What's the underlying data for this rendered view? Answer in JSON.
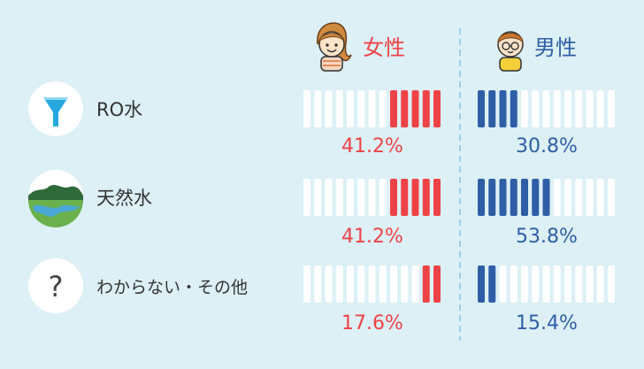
{
  "chart_data": {
    "type": "bar",
    "title": "",
    "categories": [
      "RO水",
      "天然水",
      "わからない・その他"
    ],
    "category_icons": [
      "funnel-icon",
      "landscape-icon",
      "question-icon"
    ],
    "series": [
      {
        "name": "女性",
        "icon": "girl-avatar-icon",
        "color": "#ee4346",
        "values": [
          41.2,
          41.2,
          17.6
        ],
        "labels": [
          "41.2%",
          "41.2%",
          "17.6%"
        ],
        "fill_side": "right"
      },
      {
        "name": "男性",
        "icon": "boy-avatar-icon",
        "color": "#2f5ea6",
        "values": [
          30.8,
          53.8,
          15.4
        ],
        "labels": [
          "30.8%",
          "53.8%",
          "15.4%"
        ],
        "fill_side": "left"
      }
    ],
    "unit": "%",
    "segments": 13,
    "ylim": [
      0,
      100
    ]
  },
  "colors": {
    "background": "#dcf0f6",
    "empty_segment": "#ffffff",
    "divider": "#9fcfe3",
    "text": "#333333",
    "icon_bg": "#ffffff"
  }
}
